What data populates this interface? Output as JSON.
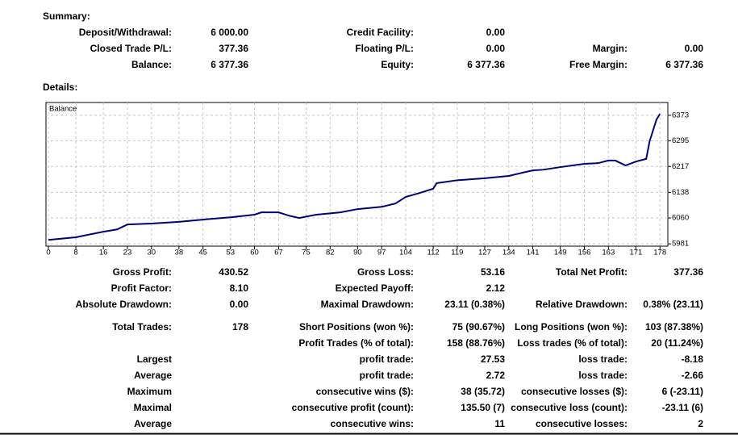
{
  "summary": {
    "title": "Summary:",
    "rows": [
      [
        {
          "label": "Deposit/Withdrawal:",
          "value": "6 000.00"
        },
        {
          "label": "Credit Facility:",
          "value": "0.00"
        },
        null
      ],
      [
        {
          "label": "Closed Trade P/L:",
          "value": "377.36"
        },
        {
          "label": "Floating P/L:",
          "value": "0.00"
        },
        {
          "label": "Margin:",
          "value": "0.00"
        }
      ],
      [
        {
          "label": "Balance:",
          "value": "6 377.36"
        },
        {
          "label": "Equity:",
          "value": "6 377.36"
        },
        {
          "label": "Free Margin:",
          "value": "6 377.36"
        }
      ]
    ]
  },
  "details": {
    "title": "Details:",
    "rows": [
      [
        {
          "label": "Gross Profit:",
          "value": "430.52"
        },
        {
          "label": "Gross Loss:",
          "value": "53.16"
        },
        {
          "label": "Total Net Profit:",
          "value": "377.36"
        }
      ],
      [
        {
          "label": "Profit Factor:",
          "value": "8.10"
        },
        {
          "label": "Expected Payoff:",
          "value": "2.12"
        },
        null
      ],
      [
        {
          "label": "Absolute Drawdown:",
          "value": "0.00"
        },
        {
          "label": "Maximal Drawdown:",
          "value": "23.11 (0.38%)"
        },
        {
          "label": "Relative Drawdown:",
          "value": "0.38% (23.11)"
        }
      ],
      [
        {
          "label": "Total Trades:",
          "value": "178"
        },
        {
          "label": "Short Positions (won %):",
          "value": "75 (90.67%)"
        },
        {
          "label": "Long Positions (won %):",
          "value": "103 (87.38%)"
        }
      ],
      [
        null,
        {
          "label": "Profit Trades (% of total):",
          "value": "158 (88.76%)"
        },
        {
          "label": "Loss trades (% of total):",
          "value": "20 (11.24%)"
        }
      ],
      [
        {
          "label": "Largest"
        },
        {
          "label": "profit trade:",
          "value": "27.53"
        },
        {
          "label": "loss trade:",
          "value": "-8.18"
        }
      ],
      [
        {
          "label": "Average"
        },
        {
          "label": "profit trade:",
          "value": "2.72"
        },
        {
          "label": "loss trade:",
          "value": "-2.66"
        }
      ],
      [
        {
          "label": "Maximum"
        },
        {
          "label": "consecutive wins ($):",
          "value": "38 (35.72)"
        },
        {
          "label": "consecutive losses ($):",
          "value": "6 (-23.11)"
        }
      ],
      [
        {
          "label": "Maximal"
        },
        {
          "label": "consecutive profit (count):",
          "value": "135.50 (7)"
        },
        {
          "label": "consecutive loss (count):",
          "value": "-23.11 (6)"
        }
      ],
      [
        {
          "label": "Average"
        },
        {
          "label": "consecutive wins:",
          "value": "11"
        },
        {
          "label": "consecutive losses:",
          "value": "2"
        }
      ]
    ]
  },
  "chart_data": {
    "type": "line",
    "x": [
      0,
      8,
      16,
      20,
      23,
      30,
      38,
      45,
      53,
      60,
      62,
      67,
      70,
      73,
      78,
      85,
      90,
      97,
      101,
      104,
      108,
      112,
      113,
      119,
      127,
      134,
      138,
      141,
      144,
      149,
      156,
      160,
      163,
      165,
      168,
      171,
      174,
      175,
      177,
      178
    ],
    "series": [
      {
        "name": "Balance",
        "color": "#000080",
        "values": [
          5993,
          6001,
          6018,
          6025,
          6040,
          6043,
          6048,
          6055,
          6062,
          6070,
          6077,
          6077,
          6067,
          6060,
          6070,
          6077,
          6087,
          6094,
          6104,
          6124,
          6136,
          6149,
          6166,
          6175,
          6181,
          6188,
          6198,
          6205,
          6207,
          6215,
          6225,
          6227,
          6235,
          6235,
          6220,
          6232,
          6240,
          6294,
          6360,
          6377
        ]
      }
    ],
    "xlim": [
      -0.7,
      180.3
    ],
    "ylim": [
      5974,
      6412
    ],
    "xticks": [
      0,
      8,
      16,
      23,
      30,
      38,
      45,
      53,
      60,
      67,
      75,
      82,
      90,
      97,
      104,
      112,
      119,
      127,
      134,
      141,
      149,
      156,
      163,
      171,
      178
    ],
    "yticks": [
      5981,
      6060,
      6138,
      6217,
      6295,
      6373
    ],
    "grid": true
  }
}
